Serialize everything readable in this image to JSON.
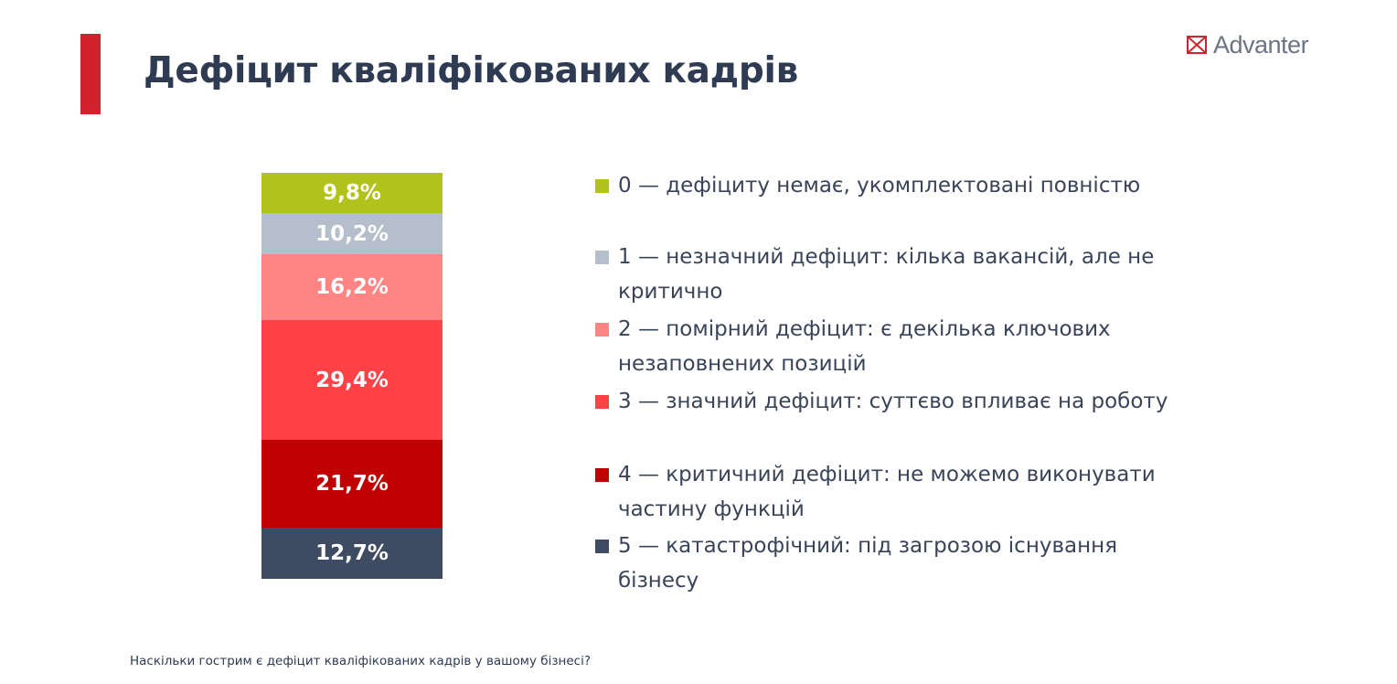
{
  "header": {
    "title": "Дефіцит кваліфікованих кадрів",
    "brand": "Advanter",
    "brand_icon": "envelope-x-logo-icon",
    "accent_color": "#d2222e"
  },
  "chart_data": {
    "type": "bar",
    "stacked": true,
    "orientation": "vertical",
    "unit": "%",
    "segments_bottom_to_top": [
      {
        "label": "5 — катастрофічний: під загрозою існування бізнесу",
        "value": 12.7,
        "display": "12,7%",
        "color": "#3f4b63"
      },
      {
        "label": "4 — критичний дефіцит: не можемо виконувати частину функцій",
        "value": 21.7,
        "display": "21,7%",
        "color": "#c00000"
      },
      {
        "label": "3 — значний дефіцит: суттєво впливає на роботу",
        "value": 29.4,
        "display": "29,4%",
        "color": "#ff4248"
      },
      {
        "label": "2 — помірний дефіцит: є декілька ключових незаповнених позицій",
        "value": 16.2,
        "display": "16,2%",
        "color": "#ff8585"
      },
      {
        "label": "1 — незначний дефіцит: кілька вакансій, але не критично",
        "value": 10.2,
        "display": "10,2%",
        "color": "#b4bfcb"
      },
      {
        "label": "0 — дефіциту немає, укомплектовані повністю",
        "value": 9.8,
        "display": "9,8%",
        "color": "#b1c21a"
      }
    ]
  },
  "legend": {
    "placement": "right",
    "items": [
      {
        "text": "0 — дефіциту немає, укомплектовані повністю",
        "color": "#b1c21a"
      },
      {
        "text": "1 — незначний дефіцит: кілька вакансій, але не критично",
        "color": "#b4bfcb"
      },
      {
        "text": "2 — помірний дефіцит: є декілька ключових незаповнених позицій",
        "color": "#ff8585"
      },
      {
        "text": "3 — значний дефіцит: суттєво впливає на роботу",
        "color": "#ff4248"
      },
      {
        "text": "4 — критичний дефіцит: не можемо виконувати частину функцій",
        "color": "#c00000"
      },
      {
        "text": "5 — катастрофічний: під загрозою існування бізнесу",
        "color": "#3f4b63"
      }
    ]
  },
  "footer": {
    "question": "Наскільки гострим є дефіцит кваліфікованих кадрів у вашому бізнесі?"
  }
}
